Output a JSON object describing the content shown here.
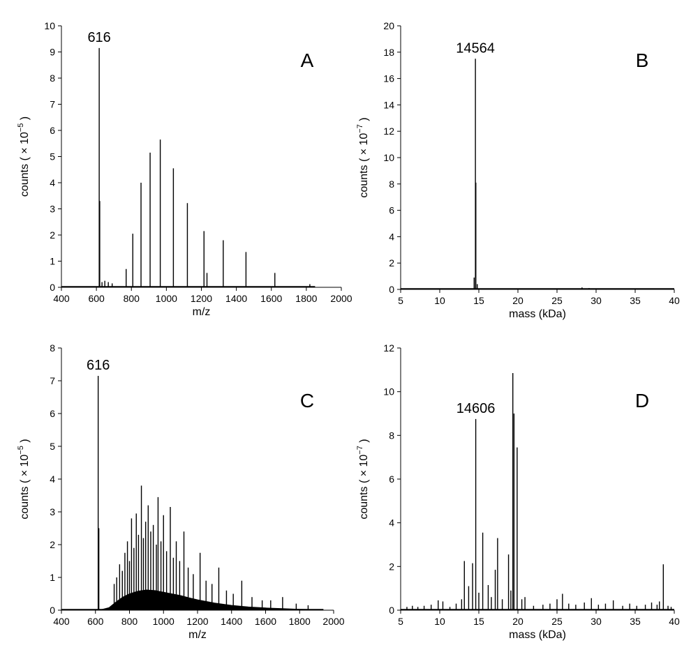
{
  "chart_data": [
    {
      "panel": "A",
      "type": "line",
      "xlabel": "m/z",
      "ylabel_prefix": "counts ( × 10",
      "ylabel_exp": "−5",
      "ylabel_suffix": " )",
      "xlim": [
        400,
        2000
      ],
      "ylim": [
        0,
        10
      ],
      "xticks": [
        400,
        600,
        800,
        1000,
        1200,
        1400,
        1600,
        1800,
        2000
      ],
      "yticks": [
        0,
        1,
        2,
        3,
        4,
        5,
        6,
        7,
        8,
        9,
        10
      ],
      "annotations": [
        {
          "text": "616",
          "x": 616,
          "y": 9.15
        }
      ],
      "peaks": [
        {
          "x": 616,
          "y": 9.15
        },
        {
          "x": 619,
          "y": 3.3
        },
        {
          "x": 632,
          "y": 0.2
        },
        {
          "x": 648,
          "y": 0.25
        },
        {
          "x": 668,
          "y": 0.2
        },
        {
          "x": 690,
          "y": 0.15
        },
        {
          "x": 770,
          "y": 0.7
        },
        {
          "x": 808,
          "y": 2.05
        },
        {
          "x": 855,
          "y": 4.0
        },
        {
          "x": 907,
          "y": 5.15
        },
        {
          "x": 965,
          "y": 5.65
        },
        {
          "x": 1040,
          "y": 4.55
        },
        {
          "x": 1120,
          "y": 3.22
        },
        {
          "x": 1215,
          "y": 2.15
        },
        {
          "x": 1232,
          "y": 0.55
        },
        {
          "x": 1325,
          "y": 1.8
        },
        {
          "x": 1455,
          "y": 1.35
        },
        {
          "x": 1620,
          "y": 0.55
        },
        {
          "x": 1820,
          "y": 0.12
        }
      ],
      "baseline_end": 1850
    },
    {
      "panel": "B",
      "type": "line",
      "xlabel": "mass (kDa)",
      "ylabel_prefix": "counts ( × 10",
      "ylabel_exp": "−7",
      "ylabel_suffix": " )",
      "xlim": [
        5,
        40
      ],
      "ylim": [
        0,
        20
      ],
      "xticks": [
        5,
        10,
        15,
        20,
        25,
        30,
        35,
        40
      ],
      "yticks": [
        0,
        2,
        4,
        6,
        8,
        10,
        12,
        14,
        16,
        18,
        20
      ],
      "annotations": [
        {
          "text": "14564",
          "x": 14.564,
          "y": 17.5
        }
      ],
      "peaks": [
        {
          "x": 14.4,
          "y": 0.9
        },
        {
          "x": 14.564,
          "y": 17.5
        },
        {
          "x": 14.62,
          "y": 8.1
        },
        {
          "x": 14.8,
          "y": 0.4
        },
        {
          "x": 28.2,
          "y": 0.15
        },
        {
          "x": 29.1,
          "y": 0.1
        }
      ],
      "baseline_end": 40
    },
    {
      "panel": "C",
      "type": "line",
      "xlabel": "m/z",
      "ylabel_prefix": "counts ( × 10",
      "ylabel_exp": "−5",
      "ylabel_suffix": " )",
      "xlim": [
        400,
        2000
      ],
      "ylim": [
        0,
        8
      ],
      "xticks": [
        400,
        600,
        800,
        1000,
        1200,
        1400,
        1600,
        1800,
        2000
      ],
      "yticks": [
        0,
        1,
        2,
        3,
        4,
        5,
        6,
        7,
        8
      ],
      "annotations": [
        {
          "text": "616",
          "x": 616,
          "y": 7.15
        }
      ],
      "peaks": [
        {
          "x": 616,
          "y": 7.15
        },
        {
          "x": 620,
          "y": 2.5
        },
        {
          "x": 710,
          "y": 0.8
        },
        {
          "x": 725,
          "y": 1.0
        },
        {
          "x": 742,
          "y": 1.4
        },
        {
          "x": 758,
          "y": 1.2
        },
        {
          "x": 773,
          "y": 1.75
        },
        {
          "x": 788,
          "y": 2.1
        },
        {
          "x": 800,
          "y": 1.5
        },
        {
          "x": 812,
          "y": 2.8
        },
        {
          "x": 826,
          "y": 1.9
        },
        {
          "x": 840,
          "y": 2.95
        },
        {
          "x": 853,
          "y": 2.3
        },
        {
          "x": 870,
          "y": 3.8
        },
        {
          "x": 882,
          "y": 2.2
        },
        {
          "x": 895,
          "y": 2.7
        },
        {
          "x": 910,
          "y": 3.2
        },
        {
          "x": 925,
          "y": 2.4
        },
        {
          "x": 940,
          "y": 2.6
        },
        {
          "x": 958,
          "y": 2.0
        },
        {
          "x": 968,
          "y": 3.45
        },
        {
          "x": 985,
          "y": 2.1
        },
        {
          "x": 1000,
          "y": 2.9
        },
        {
          "x": 1018,
          "y": 1.8
        },
        {
          "x": 1040,
          "y": 3.15
        },
        {
          "x": 1058,
          "y": 1.6
        },
        {
          "x": 1075,
          "y": 2.1
        },
        {
          "x": 1095,
          "y": 1.5
        },
        {
          "x": 1120,
          "y": 2.4
        },
        {
          "x": 1145,
          "y": 1.3
        },
        {
          "x": 1175,
          "y": 1.1
        },
        {
          "x": 1215,
          "y": 1.75
        },
        {
          "x": 1250,
          "y": 0.9
        },
        {
          "x": 1285,
          "y": 0.8
        },
        {
          "x": 1325,
          "y": 1.3
        },
        {
          "x": 1370,
          "y": 0.6
        },
        {
          "x": 1410,
          "y": 0.5
        },
        {
          "x": 1460,
          "y": 0.9
        },
        {
          "x": 1520,
          "y": 0.4
        },
        {
          "x": 1580,
          "y": 0.3
        },
        {
          "x": 1630,
          "y": 0.3
        },
        {
          "x": 1700,
          "y": 0.4
        },
        {
          "x": 1780,
          "y": 0.2
        },
        {
          "x": 1850,
          "y": 0.15
        }
      ],
      "envelope": [
        [
          620,
          0
        ],
        [
          680,
          0.08
        ],
        [
          720,
          0.25
        ],
        [
          760,
          0.4
        ],
        [
          800,
          0.5
        ],
        [
          850,
          0.58
        ],
        [
          900,
          0.62
        ],
        [
          950,
          0.6
        ],
        [
          1000,
          0.55
        ],
        [
          1050,
          0.5
        ],
        [
          1100,
          0.45
        ],
        [
          1150,
          0.38
        ],
        [
          1200,
          0.32
        ],
        [
          1300,
          0.22
        ],
        [
          1400,
          0.15
        ],
        [
          1500,
          0.1
        ],
        [
          1600,
          0.07
        ],
        [
          1700,
          0.05
        ],
        [
          1800,
          0.03
        ],
        [
          1900,
          0.02
        ],
        [
          1940,
          0
        ]
      ],
      "baseline_end": 1940
    },
    {
      "panel": "D",
      "type": "line",
      "xlabel": "mass (kDa)",
      "ylabel_prefix": "counts ( × 10",
      "ylabel_exp": "−7",
      "ylabel_suffix": " )",
      "xlim": [
        5,
        40
      ],
      "ylim": [
        0,
        12
      ],
      "xticks": [
        5,
        10,
        15,
        20,
        25,
        30,
        35,
        40
      ],
      "yticks": [
        0,
        2,
        4,
        6,
        8,
        10,
        12
      ],
      "annotations": [
        {
          "text": "14606",
          "x": 14.606,
          "y": 8.75
        }
      ],
      "peaks": [
        {
          "x": 5.8,
          "y": 0.15
        },
        {
          "x": 6.5,
          "y": 0.2
        },
        {
          "x": 7.2,
          "y": 0.15
        },
        {
          "x": 8.0,
          "y": 0.2
        },
        {
          "x": 8.9,
          "y": 0.25
        },
        {
          "x": 9.8,
          "y": 0.45
        },
        {
          "x": 10.4,
          "y": 0.4
        },
        {
          "x": 11.3,
          "y": 0.15
        },
        {
          "x": 12.1,
          "y": 0.3
        },
        {
          "x": 12.8,
          "y": 0.5
        },
        {
          "x": 13.15,
          "y": 2.25
        },
        {
          "x": 13.7,
          "y": 1.1
        },
        {
          "x": 14.2,
          "y": 2.15
        },
        {
          "x": 14.606,
          "y": 8.75
        },
        {
          "x": 15.0,
          "y": 0.8
        },
        {
          "x": 15.5,
          "y": 3.55
        },
        {
          "x": 16.2,
          "y": 1.15
        },
        {
          "x": 16.6,
          "y": 0.6
        },
        {
          "x": 17.1,
          "y": 1.85
        },
        {
          "x": 17.4,
          "y": 3.3
        },
        {
          "x": 18.0,
          "y": 0.5
        },
        {
          "x": 18.8,
          "y": 2.55
        },
        {
          "x": 19.1,
          "y": 0.9
        },
        {
          "x": 19.35,
          "y": 10.85
        },
        {
          "x": 19.5,
          "y": 9.0
        },
        {
          "x": 19.9,
          "y": 7.45
        },
        {
          "x": 20.5,
          "y": 0.5
        },
        {
          "x": 20.9,
          "y": 0.6
        },
        {
          "x": 22.0,
          "y": 0.2
        },
        {
          "x": 23.2,
          "y": 0.25
        },
        {
          "x": 24.1,
          "y": 0.3
        },
        {
          "x": 25.0,
          "y": 0.5
        },
        {
          "x": 25.7,
          "y": 0.75
        },
        {
          "x": 26.5,
          "y": 0.3
        },
        {
          "x": 27.4,
          "y": 0.25
        },
        {
          "x": 28.5,
          "y": 0.35
        },
        {
          "x": 29.4,
          "y": 0.55
        },
        {
          "x": 30.3,
          "y": 0.25
        },
        {
          "x": 31.2,
          "y": 0.3
        },
        {
          "x": 32.2,
          "y": 0.45
        },
        {
          "x": 33.4,
          "y": 0.2
        },
        {
          "x": 34.3,
          "y": 0.3
        },
        {
          "x": 35.2,
          "y": 0.2
        },
        {
          "x": 36.3,
          "y": 0.25
        },
        {
          "x": 37.1,
          "y": 0.35
        },
        {
          "x": 37.8,
          "y": 0.25
        },
        {
          "x": 38.1,
          "y": 0.4
        },
        {
          "x": 38.6,
          "y": 2.1
        },
        {
          "x": 39.2,
          "y": 0.2
        },
        {
          "x": 39.6,
          "y": 0.15
        }
      ],
      "baseline_end": 40
    }
  ]
}
